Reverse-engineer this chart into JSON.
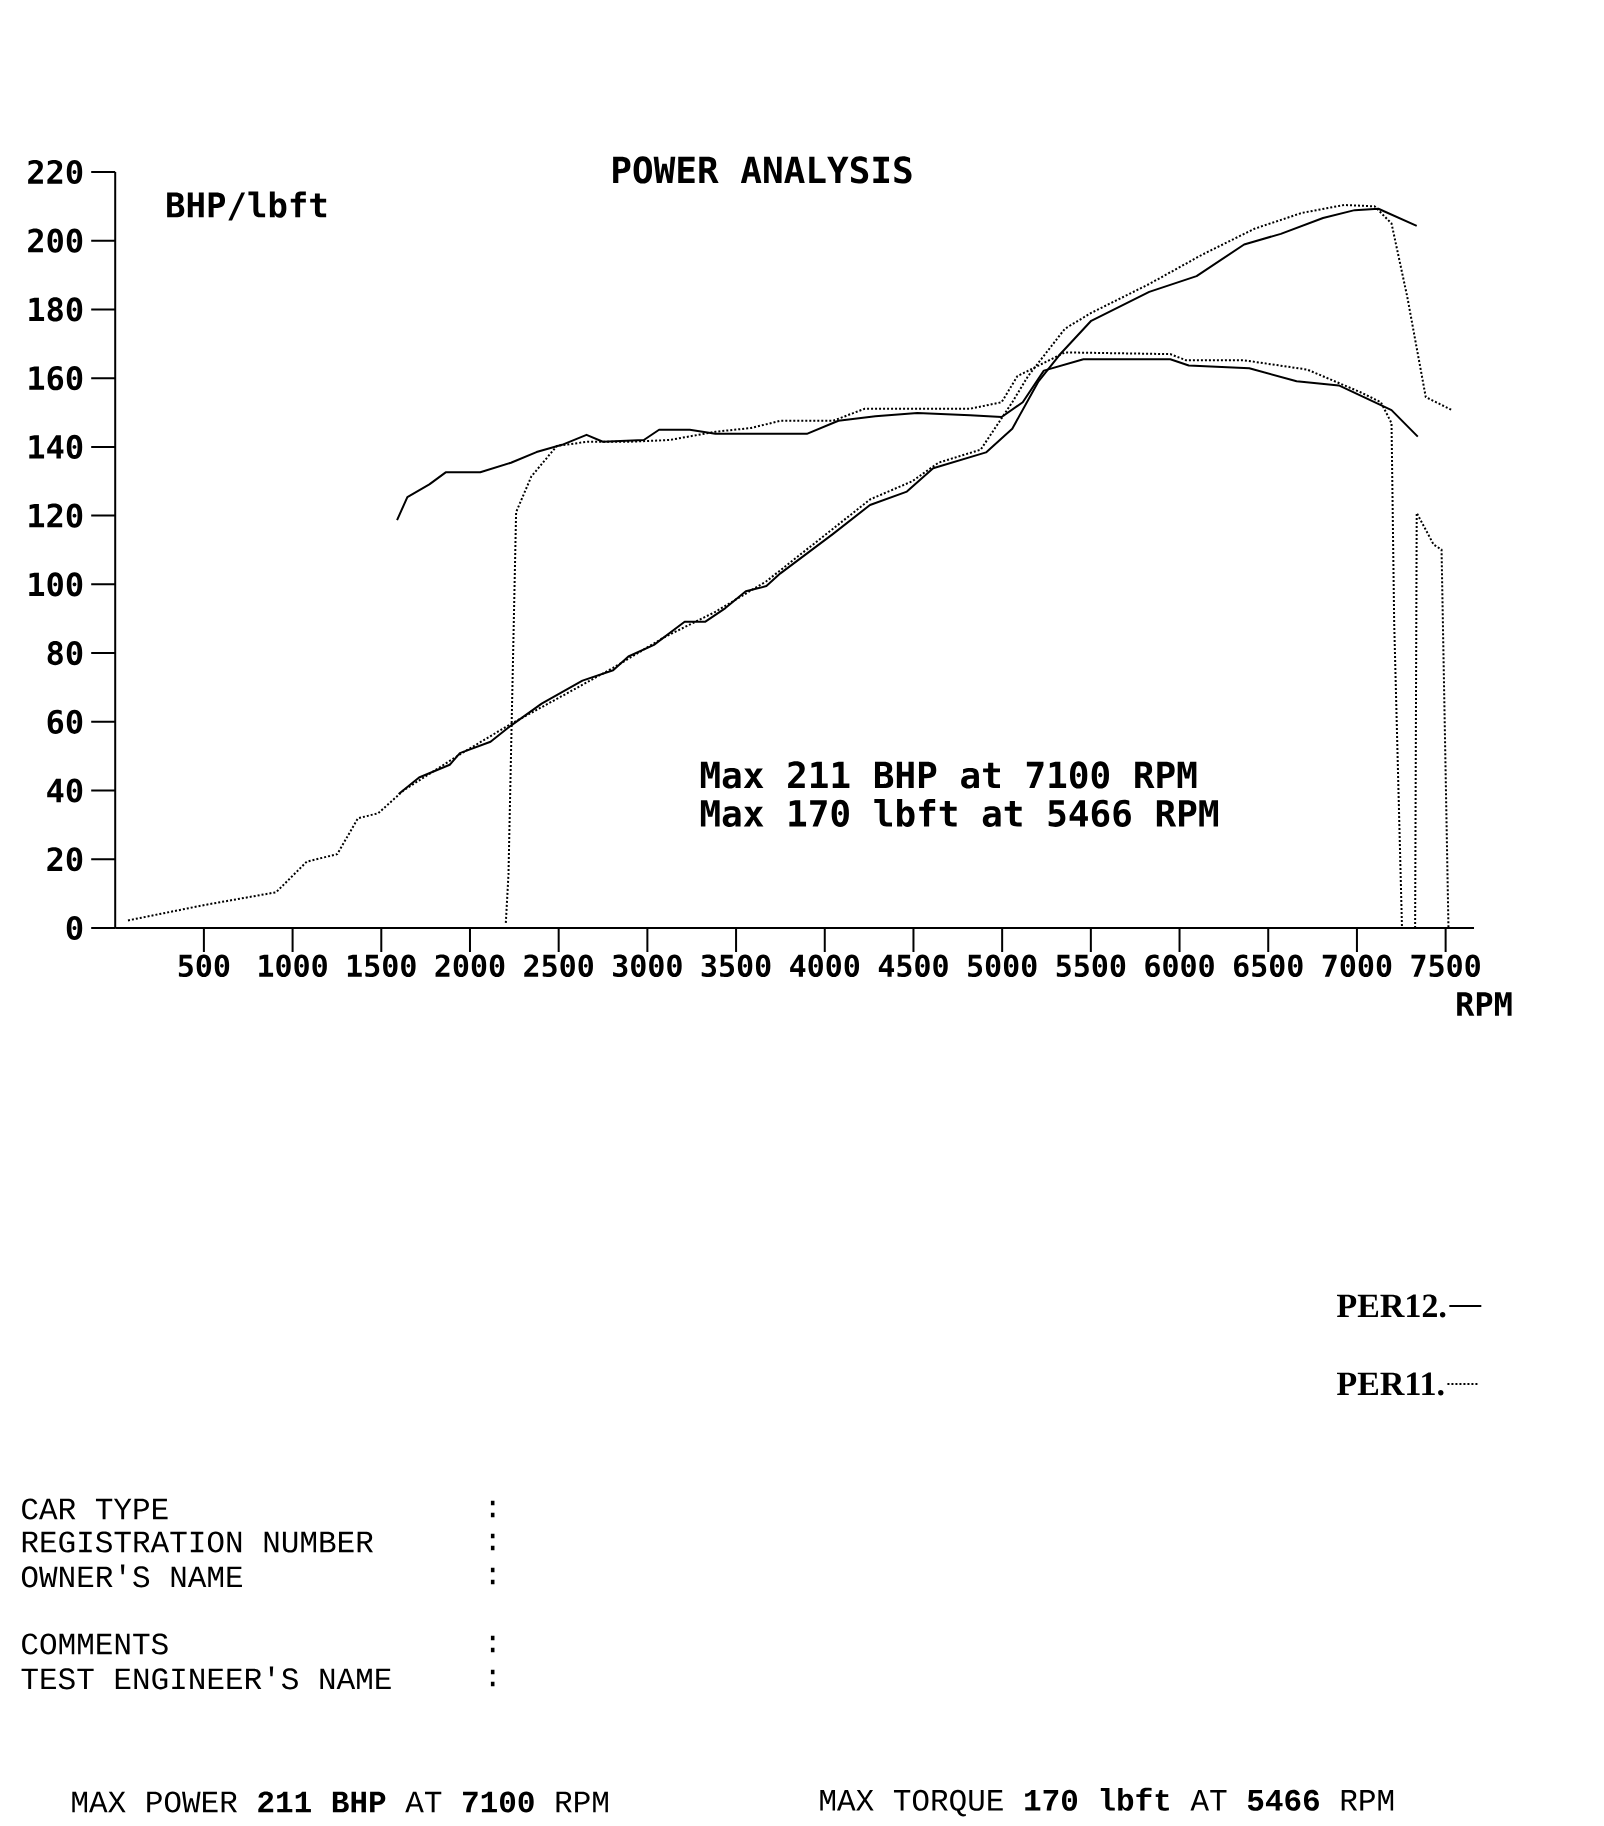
{
  "chart_data": {
    "type": "line",
    "title": "POWER ANALYSIS",
    "ylabel": "BHP/lbft",
    "xlabel": "RPM",
    "xlim": [
      0,
      7660
    ],
    "ylim": [
      0,
      220
    ],
    "xticks": [
      500,
      1000,
      1500,
      2000,
      2500,
      3000,
      3500,
      4000,
      4500,
      5000,
      5500,
      6000,
      6500,
      7000,
      7500
    ],
    "yticks": [
      0,
      20,
      40,
      60,
      80,
      100,
      120,
      140,
      160,
      180,
      200,
      220
    ],
    "legend": "bottom right",
    "series": [
      {
        "name": "PER12.",
        "color": "#000000",
        "line_style": "solid",
        "x": [
          1589,
          1647,
          1771,
          1863,
          2058,
          2231,
          2375,
          2519,
          2657,
          2749,
          2980,
          3066,
          3239,
          3383,
          3750,
          3899,
          4077,
          4285,
          4522,
          4819,
          4997,
          5116,
          5235,
          5458,
          5948,
          6052,
          6393,
          6660,
          6898,
          7195,
          7343
        ],
        "values": [
          118.7,
          125.4,
          129.1,
          132.6,
          132.6,
          135.4,
          138.5,
          140.6,
          143.5,
          141.5,
          142,
          145,
          145,
          143.8,
          143.8,
          143.8,
          147.6,
          148.9,
          149.9,
          149.2,
          148.7,
          153,
          162.2,
          165.5,
          165.5,
          163.7,
          162.9,
          159.1,
          157.9,
          150.7,
          143
        ]
      },
      {
        "color": "#000000",
        "line_style": "solid",
        "x": [
          1598,
          1713,
          1886,
          1943,
          2116,
          2231,
          2404,
          2634,
          2807,
          2893,
          3037,
          3210,
          3325,
          3440,
          3555,
          3671,
          3750,
          4047,
          4255,
          4463,
          4611,
          4909,
          5057,
          5205,
          5324,
          5502,
          5829,
          6096,
          6364,
          6571,
          6809,
          6987,
          7121,
          7337
        ],
        "values": [
          39,
          43.8,
          47.5,
          50.9,
          54.2,
          58.9,
          65.3,
          72,
          75,
          79,
          82.4,
          89.1,
          89.1,
          93.1,
          98,
          99.5,
          103.2,
          114.7,
          123.1,
          127,
          133.8,
          138.4,
          145.3,
          159.1,
          166.8,
          176.7,
          185.1,
          189.7,
          198.9,
          202,
          206.6,
          208.9,
          209.3,
          204.3
        ]
      },
      {
        "name": "PER11.",
        "color": "#000000",
        "line_style": "dotted",
        "x": [
          2202,
          2217,
          2260,
          2346,
          2490,
          2663,
          2893,
          3124,
          3383,
          3584,
          3750,
          4047,
          4225,
          4819,
          4997,
          5086,
          5354,
          5948,
          6037,
          6364,
          6720,
          7016,
          7135,
          7195,
          7210,
          7254
        ],
        "values": [
          1.5,
          15.6,
          121,
          131.4,
          140.3,
          141.5,
          141.5,
          142,
          144.4,
          145.5,
          147.6,
          147.6,
          151.1,
          151.1,
          153,
          160.6,
          167.5,
          167,
          165.2,
          165.2,
          162.5,
          156,
          153,
          146.9,
          88.7,
          0
        ]
      },
      {
        "color": "#000000",
        "line_style": "dotted",
        "x": [
          72,
          216,
          504,
          907,
          1080,
          1252,
          1368,
          1483,
          1627,
          1943,
          2231,
          2519,
          2807,
          3095,
          3383,
          3671,
          4047,
          4255,
          4493,
          4641,
          4879,
          5057,
          5146,
          5354,
          5502,
          5829,
          6126,
          6423,
          6690,
          6928,
          7100,
          7195,
          7284,
          7388,
          7536
        ],
        "values": [
          2.2,
          3.7,
          6.7,
          10.4,
          19.3,
          21.5,
          31.9,
          33.4,
          40.1,
          50.5,
          59.4,
          67.5,
          75.7,
          84.6,
          92,
          100.9,
          116.2,
          124.7,
          130,
          135.4,
          139.2,
          153,
          160.6,
          174.4,
          179,
          187.4,
          195.9,
          203.5,
          208.1,
          210.4,
          210,
          205,
          183.6,
          154.5,
          150.7
        ]
      },
      {
        "color": "#000000",
        "line_style": "dotted",
        "x": [
          7328,
          7337,
          7432,
          7477,
          7516
        ],
        "values": [
          0,
          120.8,
          111.6,
          110.1,
          0
        ]
      }
    ],
    "annotations": [
      "Max 211 BHP at  7100 RPM",
      "Max 170 lbft at 5466 RPM",
      "CAR TYPE",
      "REGISTRATION NUMBER",
      "OWNER'S NAME",
      "COMMENTS",
      "TEST ENGINEER'S NAME",
      ":",
      ":",
      ":",
      ":",
      ":",
      "MAX POWER **211 BHP**  AT **7100**  RPM",
      "MAX TORQUE **170 lbft**  AT **5466** RPM"
    ]
  }
}
